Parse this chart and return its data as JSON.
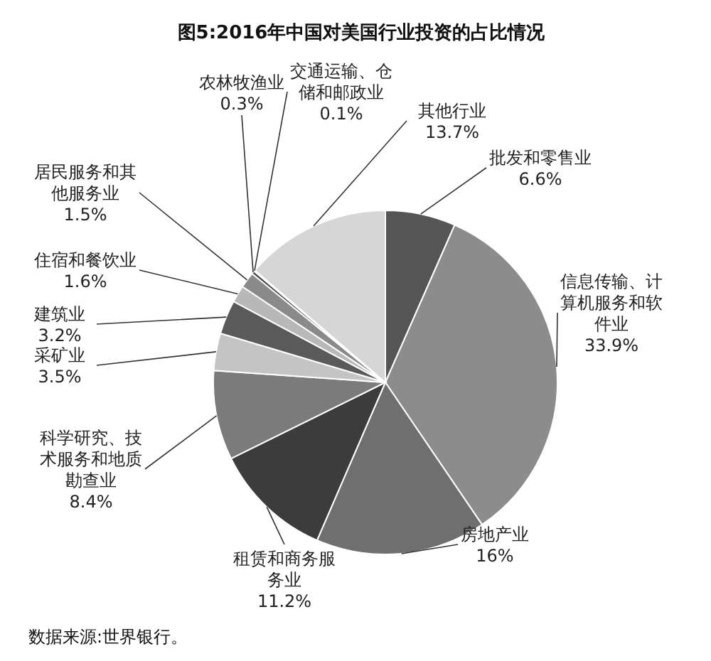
{
  "chart_data": {
    "type": "pie",
    "title": "图5:2016年中国对美国行业投资的占比情况",
    "categories": [
      "批发和零售业",
      "信息传输、计算机服务和软件业",
      "房地产业",
      "租赁和商务服务业",
      "科学研究、技术服务和地质勘查业",
      "采矿业",
      "建筑业",
      "住宿和餐饮业",
      "居民服务和其他服务业",
      "农林牧渔业",
      "交通运输、仓储和邮政业",
      "其他行业"
    ],
    "values": [
      6.6,
      33.9,
      16,
      11.2,
      8.4,
      3.5,
      3.2,
      1.6,
      1.5,
      0.3,
      0.1,
      13.7
    ],
    "value_labels": [
      "6.6%",
      "33.9%",
      "16%",
      "11.2%",
      "8.4%",
      "3.5%",
      "3.2%",
      "1.6%",
      "1.5%",
      "0.3%",
      "0.1%",
      "13.7%"
    ],
    "colors": [
      "#555555",
      "#8c8c8c",
      "#6f6f6f",
      "#3c3c3c",
      "#7b7b7b",
      "#c4c4c4",
      "#5a5a5a",
      "#b8b8b8",
      "#8a8a8a",
      "#444444",
      "#9a9a9a",
      "#d6d6d6"
    ],
    "annotations": [
      "数据来源:世界银行。"
    ]
  }
}
